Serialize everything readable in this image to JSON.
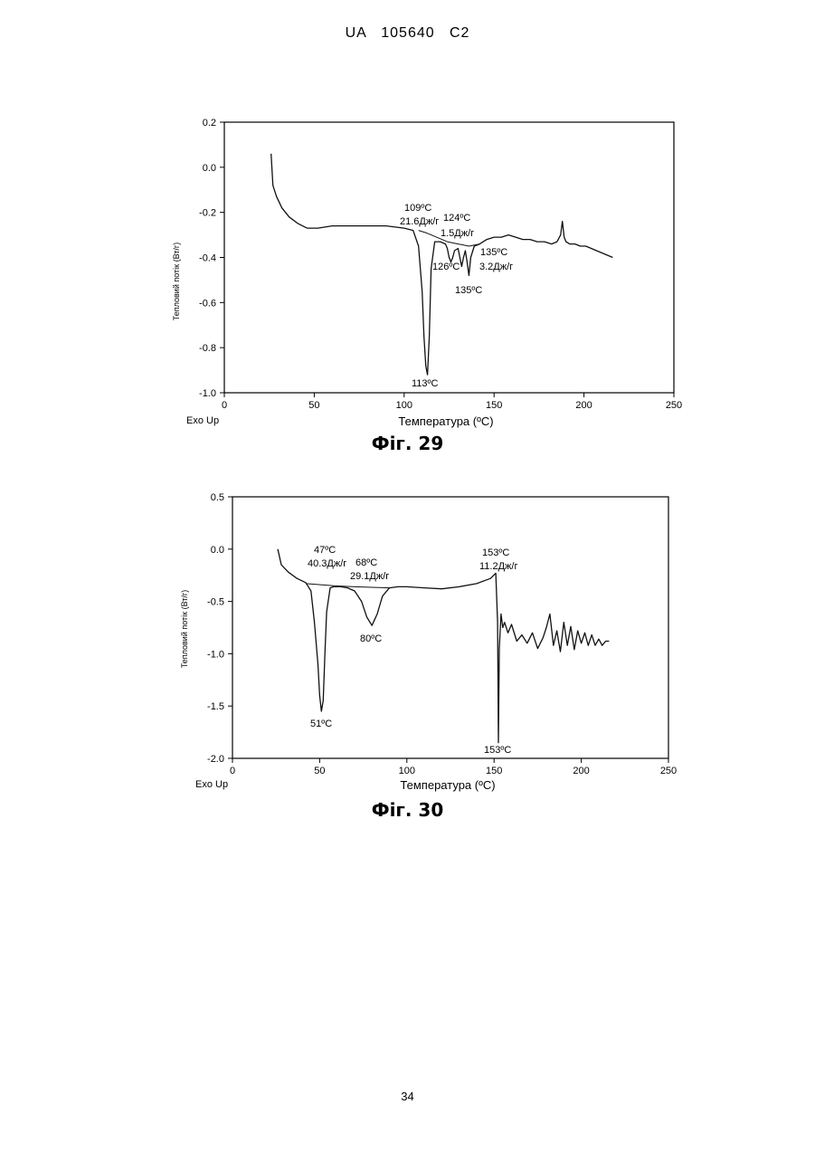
{
  "header": "UA   105640   C2",
  "page_number": "34",
  "chart_data": [
    {
      "type": "line",
      "caption": "Фіг. 29",
      "xlabel": "Температура (ºC)",
      "ylabel": "Тепловий потік (Вт/г)",
      "corner_label": "Exo Up",
      "xlim": [
        0,
        250
      ],
      "ylim": [
        -1.0,
        0.2
      ],
      "x_ticks": [
        "0",
        "50",
        "100",
        "150",
        "200",
        "250"
      ],
      "y_ticks": [
        "0.2",
        "0.0",
        "-0.2",
        "-0.4",
        "-0.6",
        "-0.8",
        "-1.0"
      ],
      "grid": false,
      "annotations": [
        "109ºC",
        "21.6Дж/г",
        "124ºC",
        "1.5Дж/г",
        "135ºC",
        "3.2Дж/г",
        "126ºC",
        "135ºC",
        "113ºC"
      ],
      "series": [
        {
          "x": [
            26,
            27,
            29,
            32,
            36,
            41,
            46,
            52,
            60,
            70,
            80,
            90,
            100,
            105,
            108,
            110,
            111,
            112,
            113,
            114,
            115,
            117,
            120,
            123,
            124,
            125,
            126,
            127,
            128,
            130,
            131,
            132,
            133,
            134,
            135,
            136,
            137,
            139,
            142,
            146,
            150,
            154,
            158,
            162,
            166,
            170,
            174,
            178,
            182,
            185,
            187,
            188,
            189,
            190,
            192,
            195,
            198,
            201,
            204,
            207,
            210,
            213,
            216
          ],
          "y": [
            0.06,
            -0.08,
            -0.13,
            -0.18,
            -0.22,
            -0.25,
            -0.27,
            -0.27,
            -0.26,
            -0.26,
            -0.26,
            -0.26,
            -0.27,
            -0.28,
            -0.35,
            -0.55,
            -0.75,
            -0.88,
            -0.92,
            -0.75,
            -0.45,
            -0.33,
            -0.33,
            -0.34,
            -0.36,
            -0.4,
            -0.42,
            -0.4,
            -0.37,
            -0.36,
            -0.4,
            -0.44,
            -0.4,
            -0.37,
            -0.42,
            -0.48,
            -0.4,
            -0.35,
            -0.34,
            -0.32,
            -0.31,
            -0.31,
            -0.3,
            -0.31,
            -0.32,
            -0.32,
            -0.33,
            -0.33,
            -0.34,
            -0.33,
            -0.3,
            -0.24,
            -0.31,
            -0.33,
            -0.34,
            -0.34,
            -0.35,
            -0.35,
            -0.36,
            -0.37,
            -0.38,
            -0.39,
            -0.4
          ]
        },
        {
          "x": [
            108,
            112,
            118,
            124,
            130,
            136,
            142
          ],
          "y": [
            -0.28,
            -0.29,
            -0.31,
            -0.33,
            -0.34,
            -0.35,
            -0.34
          ]
        }
      ]
    },
    {
      "type": "line",
      "caption": "Фіг. 30",
      "xlabel": "Температура (ºC)",
      "ylabel": "Тепловий потік (Вт/г)",
      "corner_label": "Exo Up",
      "xlim": [
        0,
        250
      ],
      "ylim": [
        -2.0,
        0.5
      ],
      "x_ticks": [
        "0",
        "50",
        "100",
        "150",
        "200",
        "250"
      ],
      "y_ticks": [
        "0.5",
        "0.0",
        "-0.5",
        "-1.0",
        "-1.5",
        "-2.0"
      ],
      "grid": false,
      "annotations": [
        "47ºC",
        "40.3Дж/г",
        "68ºC",
        "29.1Дж/г",
        "153ºC",
        "11.2Дж/г",
        "80ºC",
        "51ºC",
        "153ºC"
      ],
      "series": [
        {
          "x": [
            26,
            28,
            32,
            37,
            42,
            45,
            47,
            49,
            50,
            51,
            52,
            53,
            54,
            56,
            58,
            62,
            66,
            70,
            74,
            77,
            80,
            83,
            86,
            90,
            95,
            100,
            110,
            120,
            130,
            140,
            148,
            151,
            152,
            152.5,
            153,
            154,
            155,
            156,
            158,
            160,
            163,
            166,
            169,
            172,
            175,
            178,
            180,
            182,
            184,
            186,
            188,
            190,
            192,
            194,
            196,
            198,
            200,
            202,
            204,
            206,
            208,
            210,
            212,
            214,
            216
          ],
          "y": [
            0.0,
            -0.15,
            -0.22,
            -0.28,
            -0.32,
            -0.4,
            -0.7,
            -1.1,
            -1.4,
            -1.55,
            -1.45,
            -1.0,
            -0.6,
            -0.37,
            -0.36,
            -0.36,
            -0.37,
            -0.4,
            -0.5,
            -0.65,
            -0.73,
            -0.62,
            -0.45,
            -0.37,
            -0.36,
            -0.36,
            -0.37,
            -0.38,
            -0.36,
            -0.33,
            -0.28,
            -0.23,
            -0.7,
            -1.85,
            -0.95,
            -0.62,
            -0.75,
            -0.7,
            -0.8,
            -0.72,
            -0.88,
            -0.82,
            -0.9,
            -0.8,
            -0.95,
            -0.85,
            -0.75,
            -0.62,
            -0.92,
            -0.78,
            -0.98,
            -0.7,
            -0.92,
            -0.74,
            -0.96,
            -0.78,
            -0.9,
            -0.8,
            -0.92,
            -0.82,
            -0.92,
            -0.86,
            -0.92,
            -0.88,
            -0.88
          ]
        },
        {
          "x": [
            42,
            58,
            70,
            90
          ],
          "y": [
            -0.33,
            -0.35,
            -0.36,
            -0.37
          ]
        }
      ]
    }
  ]
}
